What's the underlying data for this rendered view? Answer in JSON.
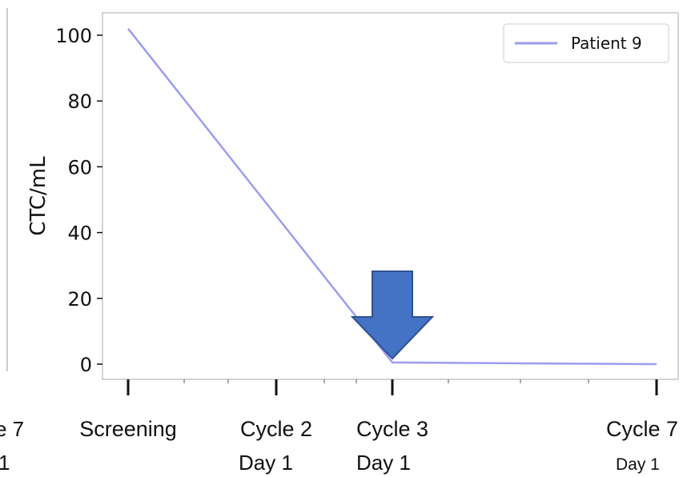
{
  "chart_data": {
    "type": "line",
    "ylabel": "CTC/mL",
    "ylim": [
      0,
      105
    ],
    "yticks": [
      0,
      20,
      40,
      60,
      80,
      100
    ],
    "x_categories": [
      {
        "line1": "Screening",
        "line2": ""
      },
      {
        "line1": "Cycle 2",
        "line2": "Day 1"
      },
      {
        "line1": "Cycle 3",
        "line2": "Day 1"
      },
      {
        "line1": "Cycle 7",
        "line2": "Day 1"
      }
    ],
    "series": [
      {
        "name": "Patient 9",
        "color": "#9c9cf0",
        "points": [
          {
            "x": "Screening",
            "y": 102
          },
          {
            "x": "Cycle 3 Day 1",
            "y": 0.5
          },
          {
            "x": "Cycle 7 Day 1",
            "y": 0
          }
        ]
      }
    ],
    "legend": "top-right",
    "annotation": {
      "type": "down-arrow",
      "at": "Cycle 3 Day 1",
      "color": "#4472c4"
    },
    "left_panel_fragment": {
      "line1": "e 7",
      "line2": "1"
    }
  }
}
